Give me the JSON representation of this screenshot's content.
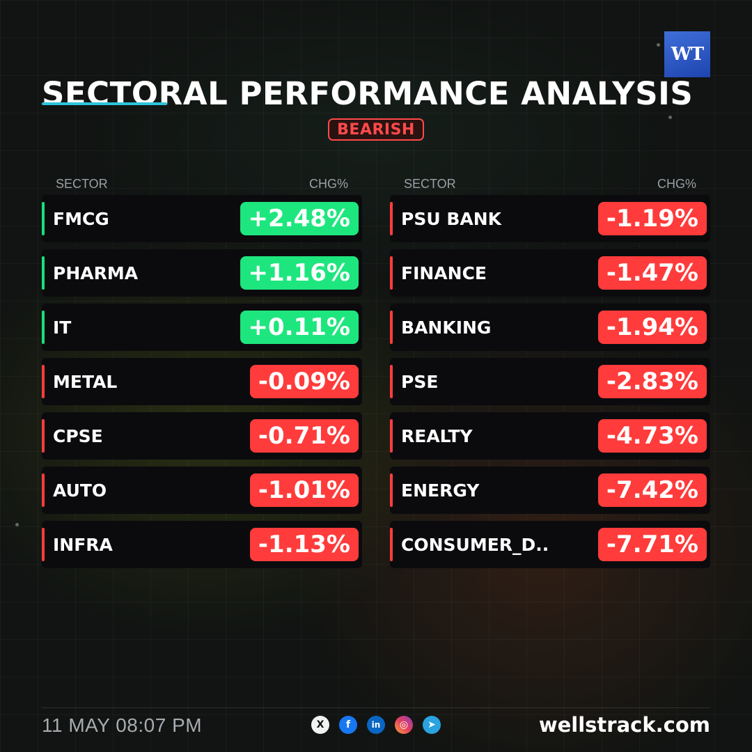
{
  "brand": {
    "logo_text": "WT"
  },
  "header": {
    "title": "SECTORAL PERFORMANCE ANALYSIS",
    "sentiment": "BEARISH"
  },
  "columns": {
    "sector_label": "SECTOR",
    "chg_label": "CHG%"
  },
  "left_sectors": [
    {
      "name": "FMCG",
      "chg": "+2.48%",
      "direction": "up"
    },
    {
      "name": "PHARMA",
      "chg": "+1.16%",
      "direction": "up"
    },
    {
      "name": "IT",
      "chg": "+0.11%",
      "direction": "up"
    },
    {
      "name": "METAL",
      "chg": "-0.09%",
      "direction": "down"
    },
    {
      "name": "CPSE",
      "chg": "-0.71%",
      "direction": "down"
    },
    {
      "name": "AUTO",
      "chg": "-1.01%",
      "direction": "down"
    },
    {
      "name": "INFRA",
      "chg": "-1.13%",
      "direction": "down"
    }
  ],
  "right_sectors": [
    {
      "name": "PSU BANK",
      "chg": "-1.19%",
      "direction": "down"
    },
    {
      "name": "FINANCE",
      "chg": "-1.47%",
      "direction": "down"
    },
    {
      "name": "BANKING",
      "chg": "-1.94%",
      "direction": "down"
    },
    {
      "name": "PSE",
      "chg": "-2.83%",
      "direction": "down"
    },
    {
      "name": "REALTY",
      "chg": "-4.73%",
      "direction": "down"
    },
    {
      "name": "ENERGY",
      "chg": "-7.42%",
      "direction": "down"
    },
    {
      "name": "CONSUMER_D..",
      "chg": "-7.71%",
      "direction": "down"
    }
  ],
  "footer": {
    "datetime": "11 MAY 08:07 PM",
    "website": "wellstrack.com",
    "socials": [
      {
        "icon": "x-icon",
        "glyph": "X"
      },
      {
        "icon": "facebook-icon",
        "glyph": "f"
      },
      {
        "icon": "linkedin-icon",
        "glyph": "in"
      },
      {
        "icon": "instagram-icon",
        "glyph": "◎"
      },
      {
        "icon": "telegram-icon",
        "glyph": "➤"
      }
    ]
  }
}
